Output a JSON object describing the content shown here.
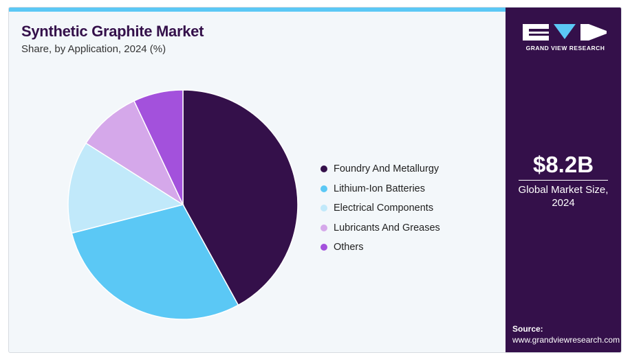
{
  "header": {
    "title": "Synthetic Graphite Market",
    "subtitle": "Share, by Application, 2024 (%)"
  },
  "colors": {
    "accent_bar": "#5bc8f5",
    "brand": "#34104a",
    "card_background": "#f3f7fa"
  },
  "chart_data": {
    "type": "pie",
    "title": "Synthetic Graphite Market",
    "subtitle": "Share, by Application, 2024 (%)",
    "categories": [
      "Foundry And Metallurgy",
      "Lithium-Ion Batteries",
      "Electrical Components",
      "Lubricants And Greases",
      "Others"
    ],
    "values": [
      42,
      29,
      13,
      9,
      7
    ],
    "colors": [
      "#34104a",
      "#5bc8f5",
      "#c1e9fa",
      "#d5a8ea",
      "#a351dc"
    ],
    "start_angle_deg": 0,
    "direction": "clockwise",
    "legend_position": "right"
  },
  "sidebar": {
    "logo_text": "GRAND VIEW RESEARCH",
    "market_size_value": "$8.2B",
    "market_size_label": "Global Market Size, 2024",
    "source_label": "Source:",
    "source_url": "www.grandviewresearch.com"
  }
}
